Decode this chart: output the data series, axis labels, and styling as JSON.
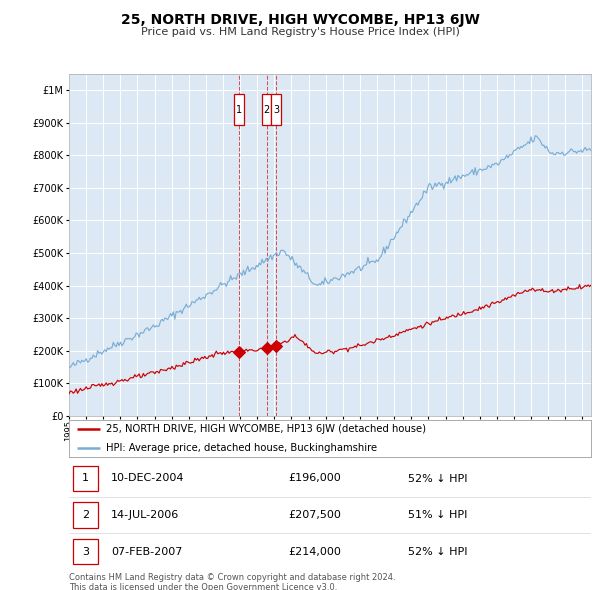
{
  "title": "25, NORTH DRIVE, HIGH WYCOMBE, HP13 6JW",
  "subtitle": "Price paid vs. HM Land Registry's House Price Index (HPI)",
  "plot_bg_color": "#dce9f5",
  "red_line_color": "#cc0000",
  "blue_line_color": "#7aadd4",
  "grid_color": "#ffffff",
  "legend_line1": "25, NORTH DRIVE, HIGH WYCOMBE, HP13 6JW (detached house)",
  "legend_line2": "HPI: Average price, detached house, Buckinghamshire",
  "transactions": [
    {
      "num": 1,
      "date": "10-DEC-2004",
      "price": "£196,000",
      "pct": "52% ↓ HPI"
    },
    {
      "num": 2,
      "date": "14-JUL-2006",
      "price": "£207,500",
      "pct": "51% ↓ HPI"
    },
    {
      "num": 3,
      "date": "07-FEB-2007",
      "price": "£214,000",
      "pct": "52% ↓ HPI"
    }
  ],
  "transaction_dates_decimal": [
    2004.94,
    2006.54,
    2007.09
  ],
  "transaction_prices": [
    196000,
    207500,
    214000
  ],
  "footer": "Contains HM Land Registry data © Crown copyright and database right 2024.\nThis data is licensed under the Open Government Licence v3.0.",
  "ylim": [
    0,
    1050000
  ],
  "xlim_start": 1995.0,
  "xlim_end": 2025.5
}
